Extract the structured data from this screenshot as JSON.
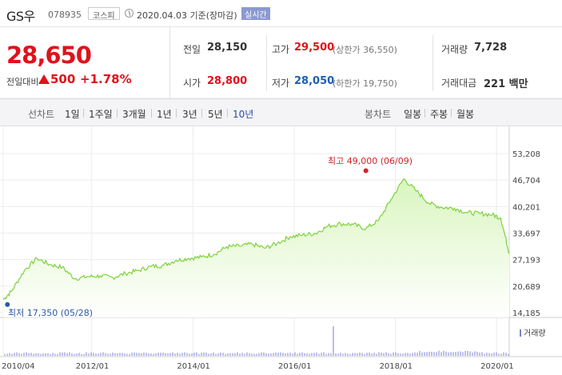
{
  "header": {
    "name": "GS우",
    "code": "078935",
    "market": "코스피",
    "date": "2020.04.03",
    "basis": "기준(장마감)",
    "live_button": "실시간"
  },
  "quote": {
    "price": "28,650",
    "change_label": "전일대비",
    "change": "500",
    "change_pct": "+1.78%",
    "prev_close_label": "전일",
    "prev_close": "28,150",
    "open_label": "시가",
    "open": "28,800",
    "high_label": "고가",
    "high": "29,500",
    "upper_limit": "(상한가 36,550)",
    "low_label": "저가",
    "low": "28,050",
    "lower_limit": "(하한가 19,750)",
    "volume_label": "거래량",
    "volume": "7,728",
    "value_label": "거래대금",
    "value": "221",
    "value_unit": "백만"
  },
  "line_periods": {
    "label": "선차트",
    "items": [
      "1일",
      "1주일",
      "3개월",
      "1년",
      "3년",
      "5년",
      "10년"
    ],
    "selected": "10년"
  },
  "candle_periods": {
    "label": "봉차트",
    "items": [
      "일봉",
      "주봉",
      "월봉"
    ]
  },
  "colors": {
    "up": "#e0121b",
    "down": "#1a5fb4",
    "line": "#7dd23d",
    "area": "#d9f5bf"
  },
  "chart_data": {
    "type": "area",
    "x": [
      "2010-04",
      "2010-06",
      "2010-09",
      "2010-12",
      "2011-03",
      "2011-06",
      "2011-09",
      "2011-12",
      "2012-03",
      "2012-06",
      "2012-09",
      "2012-12",
      "2013-03",
      "2013-06",
      "2013-09",
      "2013-12",
      "2014-03",
      "2014-06",
      "2014-09",
      "2014-12",
      "2015-03",
      "2015-06",
      "2015-09",
      "2015-12",
      "2016-03",
      "2016-06",
      "2016-09",
      "2016-12",
      "2017-03",
      "2017-06",
      "2017-09",
      "2017-12",
      "2018-03",
      "2018-06",
      "2018-09",
      "2018-12",
      "2019-03",
      "2019-06",
      "2019-09",
      "2019-12",
      "2020-02",
      "2020-04"
    ],
    "series": [
      {
        "values": [
          17350,
          19500,
          24500,
          27500,
          26000,
          25300,
          22500,
          23000,
          23200,
          22800,
          23800,
          24500,
          25500,
          25800,
          27000,
          27500,
          27800,
          28500,
          30300,
          30500,
          31000,
          30000,
          31200,
          32800,
          33200,
          33600,
          35400,
          36000,
          35800,
          34800,
          36800,
          42000,
          47000,
          44000,
          41000,
          40000,
          39800,
          38700,
          38500,
          38200,
          37400,
          28650
        ]
      }
    ],
    "annotations": {
      "high": "최고 49,000 (06/09)",
      "low": "최저 17,350 (05/28)"
    },
    "ylim": [
      14185,
      53208
    ],
    "yticks": [
      "53,208",
      "46,704",
      "40,201",
      "33,697",
      "27,193",
      "20,689",
      "14,185"
    ],
    "xticks": [
      "2010/04",
      "2012/01",
      "2014/01",
      "2016/01",
      "2018/01",
      "2020/01"
    ],
    "volume_label": "거래량",
    "grid": true
  }
}
